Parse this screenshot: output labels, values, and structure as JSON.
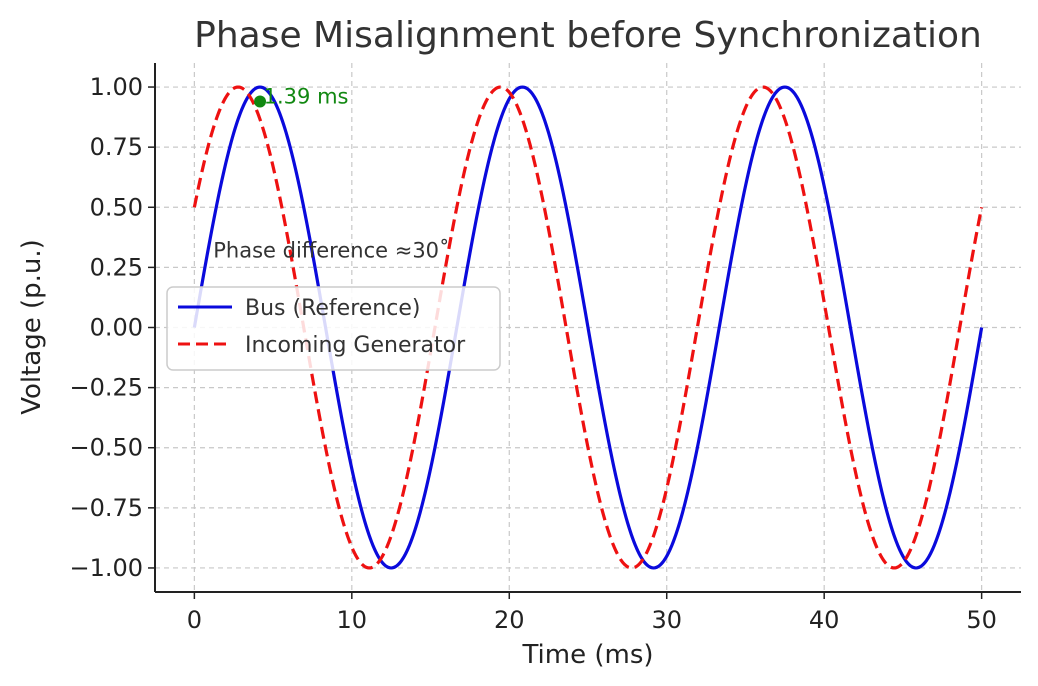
{
  "chart_data": {
    "type": "line",
    "title": "Phase Misalignment before Synchronization",
    "xlabel": "Time (ms)",
    "ylabel": "Voltage (p.u.)",
    "xlim": [
      -2.5,
      52.5
    ],
    "ylim": [
      -1.1,
      1.1
    ],
    "xticks": [
      0,
      10,
      20,
      30,
      40,
      50
    ],
    "xtick_labels": [
      "0",
      "10",
      "20",
      "30",
      "40",
      "50"
    ],
    "yticks": [
      1.0,
      0.75,
      0.5,
      0.25,
      0.0,
      -0.25,
      -0.5,
      -0.75,
      -1.0
    ],
    "ytick_labels": [
      "1.00",
      "0.75",
      "0.50",
      "0.25",
      "0.00",
      "−0.25",
      "−0.50",
      "−0.75",
      "−1.00"
    ],
    "grid": true,
    "legend_position": "center-left",
    "frequency_hz": 60,
    "series": [
      {
        "name": "Bus (Reference)",
        "function": "sin",
        "amplitude": 1.0,
        "phase_deg": 0,
        "x_range": [
          0,
          50
        ],
        "color": "#0a0adc",
        "line_style": "solid"
      },
      {
        "name": "Incoming Generator",
        "function": "sin",
        "amplitude": 1.0,
        "phase_deg": 30,
        "x_range": [
          0,
          50
        ],
        "color": "#ee1111",
        "line_style": "dashed"
      }
    ],
    "annotations": [
      {
        "text": "Phase difference  ≈30˚",
        "x": 1.2,
        "y": 0.32,
        "color": "#333333"
      },
      {
        "text": "1.39 ms",
        "x": 4.4,
        "y": 0.96,
        "color": "#118811",
        "marker": {
          "x": 4.17,
          "y": 0.94
        }
      }
    ]
  }
}
